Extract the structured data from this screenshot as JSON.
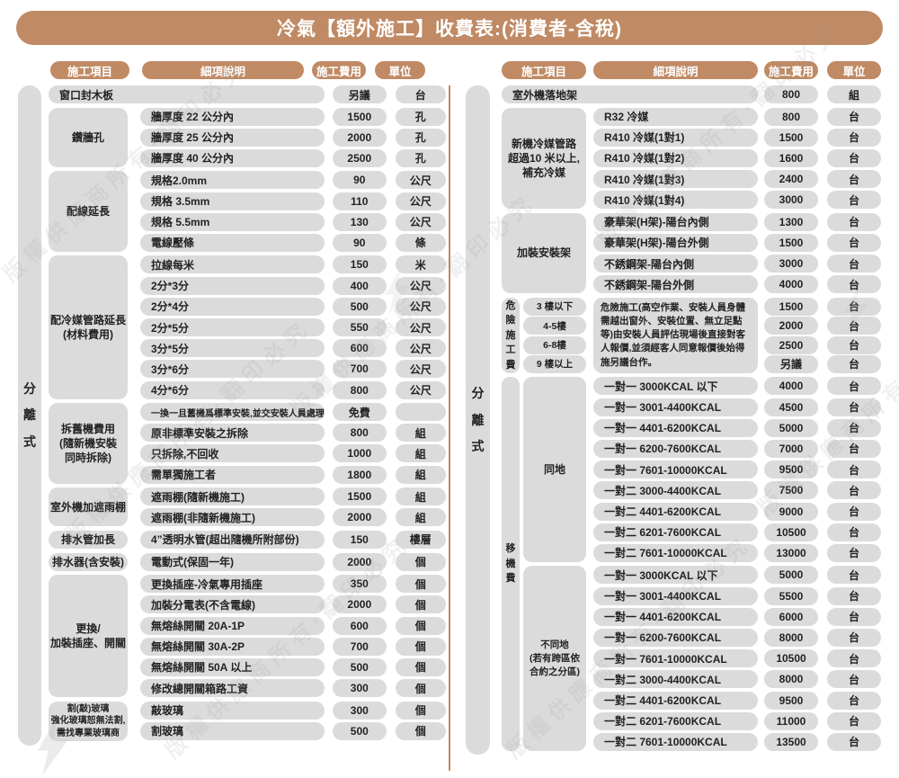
{
  "title": "冷氣【額外施工】收費表:(消費者-含稅)",
  "columns": {
    "item": "施工項目",
    "detail": "細項說明",
    "fee": "施工費用",
    "unit": "單位"
  },
  "side_label": "分離式",
  "watermark": {
    "text": "版權供應商所有·翻印必究"
  },
  "colors": {
    "accent": "#c08a64",
    "pill": "#dbdbdb",
    "text": "#222222"
  },
  "left_table": {
    "groups": [
      {
        "rows": [
          {
            "detail": "窗口封木板",
            "fee": "另議",
            "unit": "台"
          }
        ]
      },
      {
        "label": "鑽牆孔",
        "rows": [
          {
            "detail": "牆厚度 22 公分內",
            "fee": "1500",
            "unit": "孔"
          },
          {
            "detail": "牆厚度 25 公分內",
            "fee": "2000",
            "unit": "孔"
          },
          {
            "detail": "牆厚度 40 公分內",
            "fee": "2500",
            "unit": "孔"
          }
        ]
      },
      {
        "label": "配線延長",
        "rows": [
          {
            "detail": "規格2.0mm",
            "fee": "90",
            "unit": "公尺"
          },
          {
            "detail": "規格 3.5mm",
            "fee": "110",
            "unit": "公尺"
          },
          {
            "detail": "規格 5.5mm",
            "fee": "130",
            "unit": "公尺"
          },
          {
            "detail": "電線壓條",
            "fee": "90",
            "unit": "條"
          }
        ]
      },
      {
        "label": "配冷媒管路延長\n(材料費用)",
        "rows": [
          {
            "detail": "拉線每米",
            "fee": "150",
            "unit": "米"
          },
          {
            "detail": "2分*3分",
            "fee": "400",
            "unit": "公尺"
          },
          {
            "detail": "2分*4分",
            "fee": "500",
            "unit": "公尺"
          },
          {
            "detail": "2分*5分",
            "fee": "550",
            "unit": "公尺"
          },
          {
            "detail": "3分*5分",
            "fee": "600",
            "unit": "公尺"
          },
          {
            "detail": "3分*6分",
            "fee": "700",
            "unit": "公尺"
          },
          {
            "detail": "4分*6分",
            "fee": "800",
            "unit": "公尺"
          }
        ]
      },
      {
        "label": "拆舊機費用\n(隨新機安裝\n同時拆除)",
        "rows": [
          {
            "detail": "一換一且舊機爲標準安裝,並交安裝人員處理",
            "fee": "免費",
            "unit": "",
            "small": true
          },
          {
            "detail": "原非標準安裝之拆除",
            "fee": "800",
            "unit": "組"
          },
          {
            "detail": "只拆除,不回收",
            "fee": "1000",
            "unit": "組"
          },
          {
            "detail": "需單獨施工者",
            "fee": "1800",
            "unit": "組"
          }
        ]
      },
      {
        "label": "室外機加遮雨棚",
        "rows": [
          {
            "detail": "遮雨棚(隨新機施工)",
            "fee": "1500",
            "unit": "組"
          },
          {
            "detail": "遮雨棚(非隨新機施工)",
            "fee": "2000",
            "unit": "組"
          }
        ]
      },
      {
        "label": "排水管加長",
        "rows": [
          {
            "detail": "4”透明水管(超出隨機所附部份)",
            "fee": "150",
            "unit": "樓層"
          }
        ]
      },
      {
        "label": "排水器(含安裝)",
        "rows": [
          {
            "detail": "電動式(保固一年)",
            "fee": "2000",
            "unit": "個"
          }
        ]
      },
      {
        "label": "更換/\n加裝插座、開關",
        "rows": [
          {
            "detail": "更換插座-冷氣專用插座",
            "fee": "350",
            "unit": "個"
          },
          {
            "detail": "加裝分電表(不含電線)",
            "fee": "2000",
            "unit": "個"
          },
          {
            "detail": "無熔絲開關 20A-1P",
            "fee": "600",
            "unit": "個"
          },
          {
            "detail": "無熔絲開關 30A-2P",
            "fee": "700",
            "unit": "個"
          },
          {
            "detail": "無熔絲開關 50A 以上",
            "fee": "500",
            "unit": "個"
          },
          {
            "detail": "修改總開關箱路工資",
            "fee": "300",
            "unit": "個"
          }
        ]
      },
      {
        "label": "割(敲)玻璃\n強化玻璃恕無法割,\n需找專業玻璃商",
        "small_label": true,
        "rows": [
          {
            "detail": "敲玻璃",
            "fee": "300",
            "unit": "個"
          },
          {
            "detail": "割玻璃",
            "fee": "500",
            "unit": "個"
          }
        ]
      }
    ]
  },
  "right_table": {
    "groups": [
      {
        "rows": [
          {
            "detail": "室外機落地架",
            "fee": "800",
            "unit": "組"
          }
        ]
      },
      {
        "label": "新機冷媒管路\n超過10 米以上,\n補充冷媒",
        "rows": [
          {
            "detail": "R32 冷媒",
            "fee": "800",
            "unit": "台"
          },
          {
            "detail": "R410 冷媒(1對1)",
            "fee": "1500",
            "unit": "台"
          },
          {
            "detail": "R410 冷媒(1對2)",
            "fee": "1600",
            "unit": "台"
          },
          {
            "detail": "R410 冷媒(1對3)",
            "fee": "2400",
            "unit": "台"
          },
          {
            "detail": "R410 冷媒(1對4)",
            "fee": "3000",
            "unit": "台"
          }
        ]
      },
      {
        "label": "加裝安裝架",
        "rows": [
          {
            "detail": "豪華架(H架)-陽台內側",
            "fee": "1300",
            "unit": "台"
          },
          {
            "detail": "豪華架(H架)-陽台外側",
            "fee": "1500",
            "unit": "台"
          },
          {
            "detail": "不銹鋼架-陽台內側",
            "fee": "3000",
            "unit": "台"
          },
          {
            "detail": "不銹鋼架-陽台外側",
            "fee": "4000",
            "unit": "台"
          }
        ]
      },
      {
        "type": "danger",
        "label": "危險施工費",
        "subs": [
          "3 樓以下",
          "4-5樓",
          "6-8樓",
          "9 樓以上"
        ],
        "description": "危險施工(高空作業、安裝人員身體需越出窗外、安裝位置、無立足點等)由安裝人員評估現場後直接對客人報價,並須經客人同意報價後始得施另議台作。",
        "rows": [
          {
            "fee": "1500",
            "unit": "台"
          },
          {
            "fee": "2000",
            "unit": "台"
          },
          {
            "fee": "2500",
            "unit": "台"
          },
          {
            "fee": "另議",
            "unit": "台"
          }
        ]
      },
      {
        "type": "move",
        "label": "移機費",
        "sub_groups": [
          {
            "label": "同地",
            "rows": [
              {
                "detail": "一對一 3000KCAL 以下",
                "fee": "4000",
                "unit": "台"
              },
              {
                "detail": "一對一 3001-4400KCAL",
                "fee": "4500",
                "unit": "台"
              },
              {
                "detail": "一對一 4401-6200KCAL",
                "fee": "5000",
                "unit": "台"
              },
              {
                "detail": "一對一 6200-7600KCAL",
                "fee": "7000",
                "unit": "台"
              },
              {
                "detail": "一對一 7601-10000KCAL",
                "fee": "9500",
                "unit": "台"
              },
              {
                "detail": "一對二 3000-4400KCAL",
                "fee": "7500",
                "unit": "台"
              },
              {
                "detail": "一對二 4401-6200KCAL",
                "fee": "9000",
                "unit": "台"
              },
              {
                "detail": "一對二 6201-7600KCAL",
                "fee": "10500",
                "unit": "台"
              },
              {
                "detail": "一對二 7601-10000KCAL",
                "fee": "13000",
                "unit": "台"
              }
            ]
          },
          {
            "label": "不同地\n(若有跨區依\n合約之分區)",
            "rows": [
              {
                "detail": "一對一 3000KCAL 以下",
                "fee": "5000",
                "unit": "台"
              },
              {
                "detail": "一對一 3001-4400KCAL",
                "fee": "5500",
                "unit": "台"
              },
              {
                "detail": "一對一 4401-6200KCAL",
                "fee": "6000",
                "unit": "台"
              },
              {
                "detail": "一對一 6200-7600KCAL",
                "fee": "8000",
                "unit": "台"
              },
              {
                "detail": "一對一 7601-10000KCAL",
                "fee": "10500",
                "unit": "台"
              },
              {
                "detail": "一對二 3000-4400KCAL",
                "fee": "8000",
                "unit": "台"
              },
              {
                "detail": "一對二 4401-6200KCAL",
                "fee": "9500",
                "unit": "台"
              },
              {
                "detail": "一對二 6201-7600KCAL",
                "fee": "11000",
                "unit": "台"
              },
              {
                "detail": "一對二 7601-10000KCAL",
                "fee": "13500",
                "unit": "台"
              }
            ]
          }
        ]
      }
    ]
  }
}
